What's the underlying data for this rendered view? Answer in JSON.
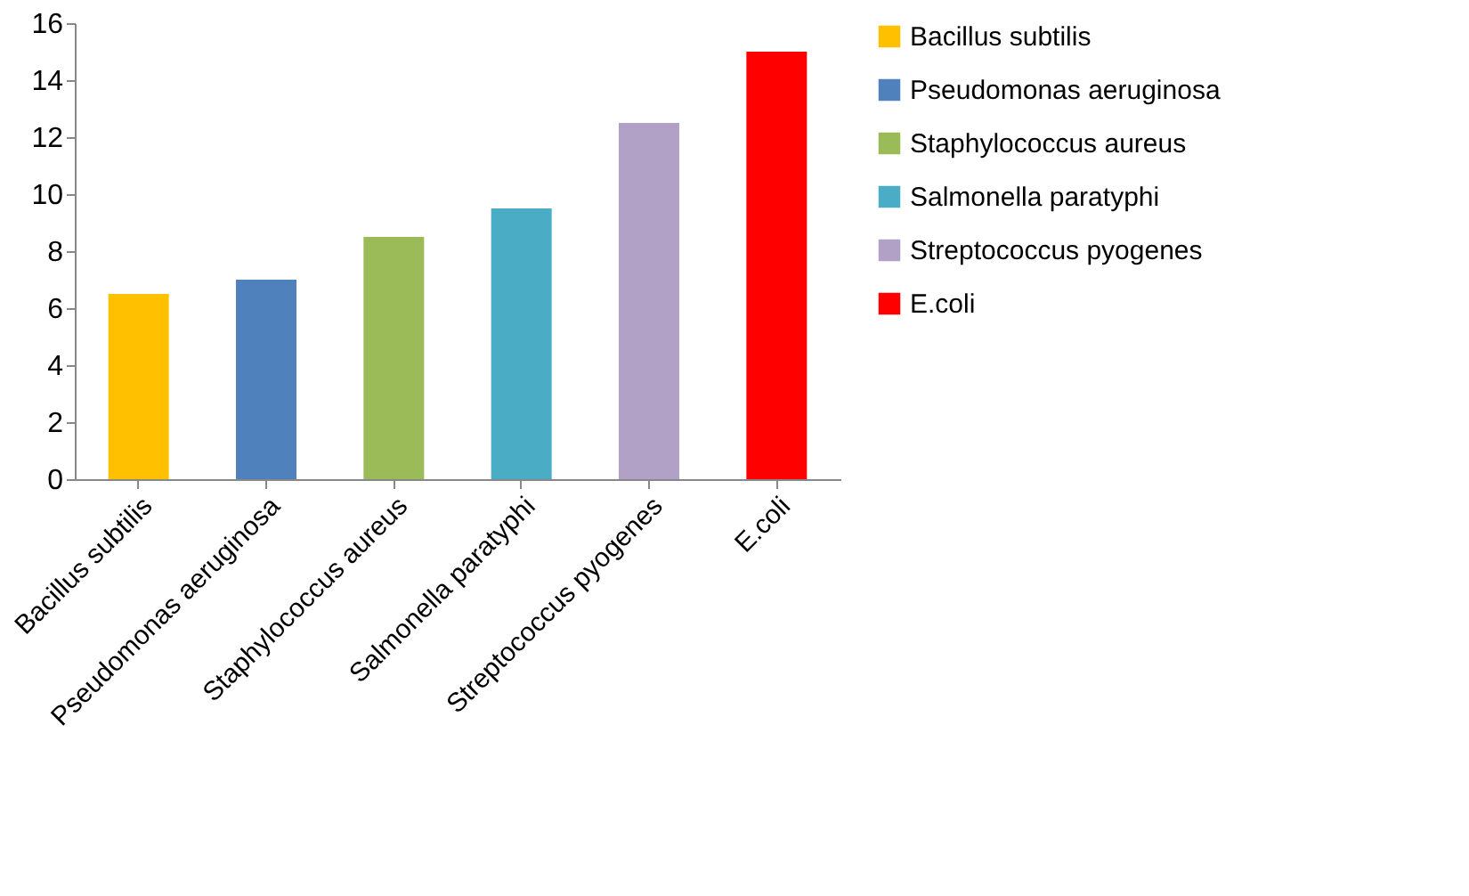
{
  "chart_data": {
    "type": "bar",
    "stacked": true,
    "categories": [
      "Bacillus subtilis",
      "Pseudomonas aeruginosa",
      "Staphylococcus aureus",
      "Salmonella paratyphi",
      "Streptococcus pyogenes",
      "E.coli"
    ],
    "series": [
      {
        "name": "Bacillus subtilis",
        "color": "#ffc000",
        "values": [
          6.5,
          null,
          null,
          null,
          null,
          null
        ]
      },
      {
        "name": "Pseudomonas aeruginosa",
        "color": "#4f81bd",
        "values": [
          null,
          7,
          null,
          null,
          null,
          null
        ]
      },
      {
        "name": "Staphylococcus aureus",
        "color": "#9bbb59",
        "values": [
          null,
          null,
          8.5,
          null,
          null,
          null
        ]
      },
      {
        "name": "Salmonella paratyphi",
        "color": "#4bacc6",
        "values": [
          null,
          null,
          null,
          9.5,
          null,
          null
        ]
      },
      {
        "name": "Streptococcus pyogenes",
        "color": "#b2a1c7",
        "values": [
          null,
          null,
          null,
          null,
          12.5,
          null
        ]
      },
      {
        "name": "E.coli",
        "color": "#ff0000",
        "values": [
          null,
          null,
          null,
          null,
          null,
          15
        ]
      }
    ],
    "ylim": [
      0,
      16
    ],
    "yticks": [
      0,
      2,
      4,
      6,
      8,
      10,
      12,
      14,
      16
    ],
    "grid": false,
    "legend": "right"
  }
}
